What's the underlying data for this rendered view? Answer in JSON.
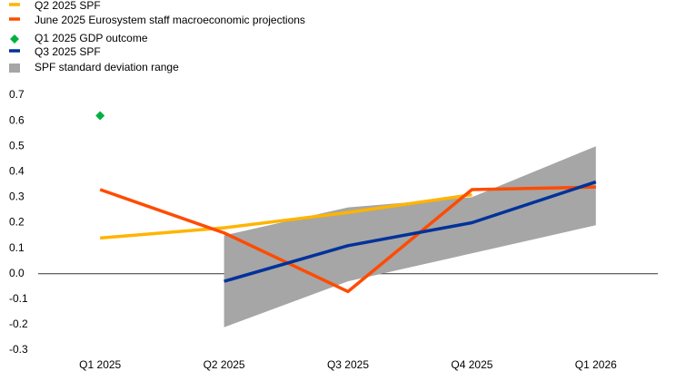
{
  "chart_data": {
    "type": "line",
    "categories": [
      "Q1 2025",
      "Q2 2025",
      "Q3 2025",
      "Q4 2025",
      "Q1 2026"
    ],
    "series": [
      {
        "name": "Q2 2025 SPF",
        "color": "#ffb400",
        "values": [
          0.14,
          0.18,
          0.24,
          0.31,
          null
        ]
      },
      {
        "name": "June 2025 Eurosystem staff macroeconomic projections",
        "color": "#ff4b00",
        "values": [
          0.33,
          0.16,
          -0.07,
          0.33,
          0.34
        ]
      },
      {
        "name": "Q1 2025 GDP outcome",
        "color": "#00b140",
        "marker": "diamond",
        "values": [
          0.62,
          null,
          null,
          null,
          null
        ]
      },
      {
        "name": "Q3 2025 SPF",
        "color": "#003299",
        "values": [
          null,
          -0.03,
          0.11,
          0.2,
          0.36
        ]
      },
      {
        "name": "SPF standard deviation range",
        "color": "#a6a6a6",
        "kind": "range",
        "lower": [
          null,
          -0.21,
          -0.03,
          0.08,
          0.19
        ],
        "upper": [
          null,
          0.15,
          0.26,
          0.3,
          0.5
        ]
      }
    ],
    "ylim": [
      -0.3,
      0.7
    ],
    "yticks": [
      0.7,
      0.6,
      0.5,
      0.4,
      0.3,
      0.2,
      0.1,
      {
        "value": 0,
        "label": "0.0"
      },
      -0.1,
      -0.2,
      -0.3
    ],
    "grid": false,
    "legend": "top-left"
  }
}
